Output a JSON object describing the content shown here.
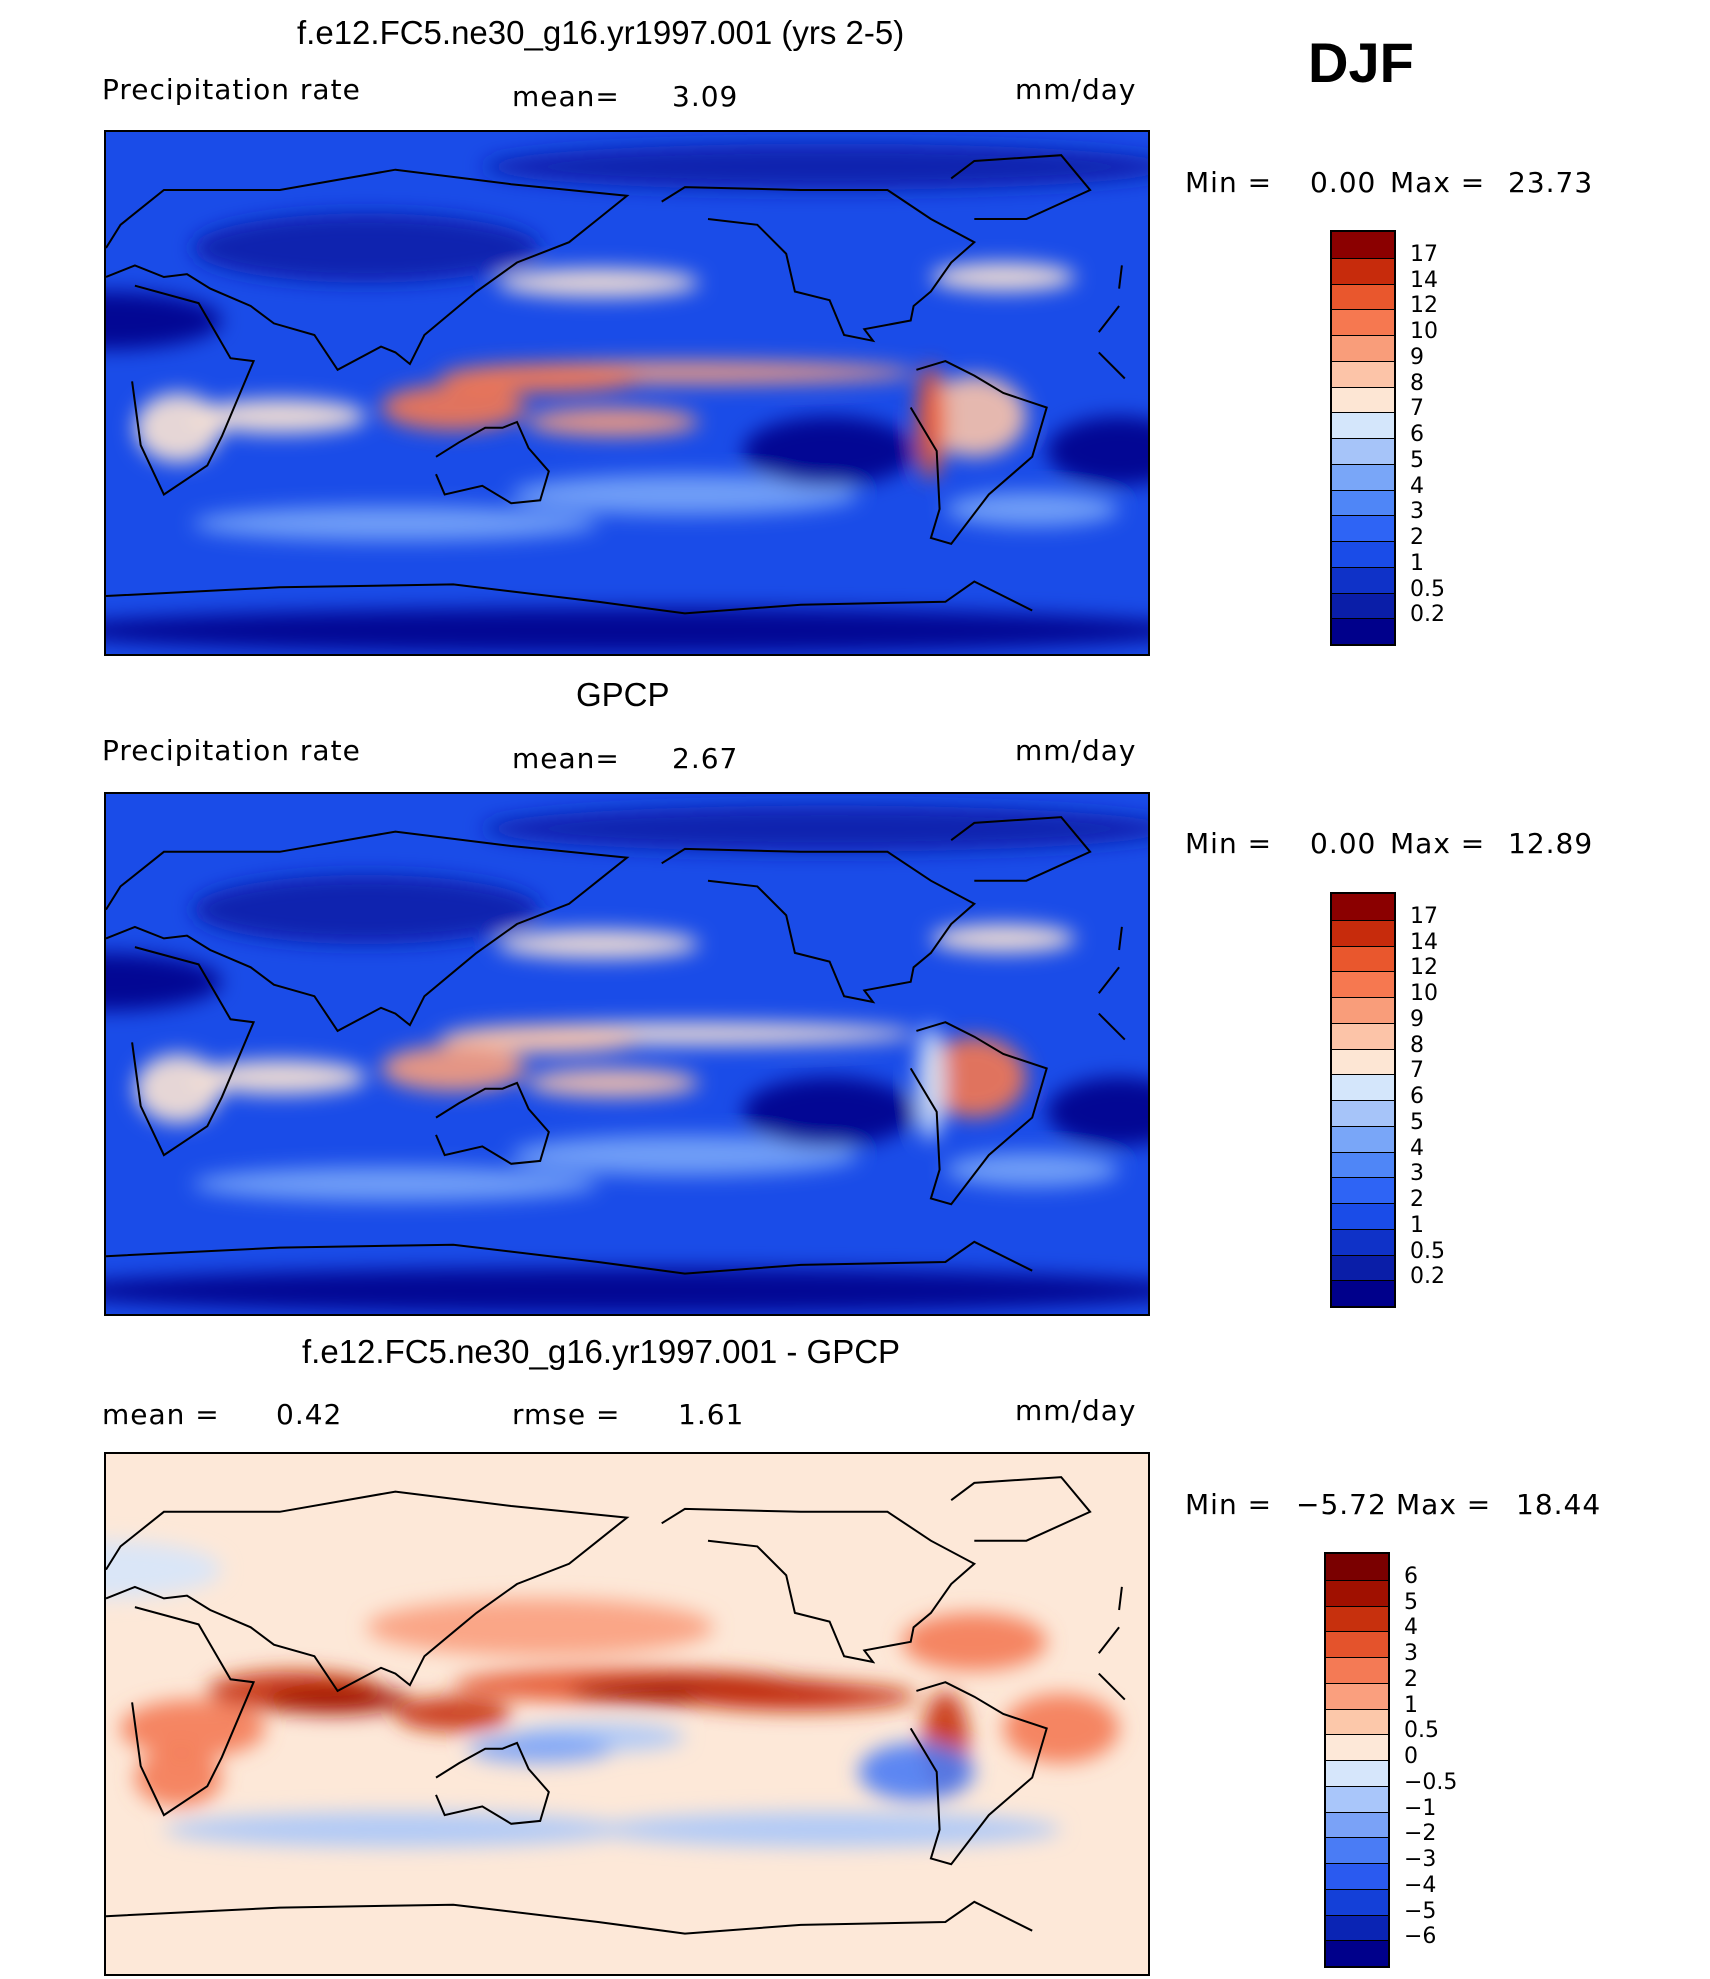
{
  "header": {
    "season": "DJF"
  },
  "chart_data": [
    {
      "type": "heatmap",
      "title": "f.e12.FC5.ne30_g16.yr1997.001 (yrs 2-5)",
      "variable": "Precipitation rate",
      "mean_label": "mean=",
      "mean_value": "3.09",
      "units": "mm/day",
      "min_label": "Min =",
      "min_value": "0.00",
      "max_label": "Max =",
      "max_value": "23.73",
      "levels": [
        "0.2",
        "0.5",
        "1",
        "2",
        "3",
        "4",
        "5",
        "6",
        "7",
        "8",
        "9",
        "10",
        "12",
        "14",
        "17"
      ],
      "colors": [
        "#00008b",
        "#0a1ea8",
        "#0f32c8",
        "#1a4ce8",
        "#2e64f5",
        "#4f86f7",
        "#79a6f8",
        "#a6c4f9",
        "#d4e6fb",
        "#fde6d4",
        "#fcc4a8",
        "#f99d7a",
        "#f67850",
        "#e9572d",
        "#c72b0c",
        "#8b0000"
      ]
    },
    {
      "type": "heatmap",
      "title": "GPCP",
      "variable": "Precipitation rate",
      "mean_label": "mean=",
      "mean_value": "2.67",
      "units": "mm/day",
      "min_label": "Min =",
      "min_value": "0.00",
      "max_label": "Max =",
      "max_value": "12.89",
      "levels": [
        "0.2",
        "0.5",
        "1",
        "2",
        "3",
        "4",
        "5",
        "6",
        "7",
        "8",
        "9",
        "10",
        "12",
        "14",
        "17"
      ],
      "colors": [
        "#00008b",
        "#0a1ea8",
        "#0f32c8",
        "#1a4ce8",
        "#2e64f5",
        "#4f86f7",
        "#79a6f8",
        "#a6c4f9",
        "#d4e6fb",
        "#fde6d4",
        "#fcc4a8",
        "#f99d7a",
        "#f67850",
        "#e9572d",
        "#c72b0c",
        "#8b0000"
      ]
    },
    {
      "type": "heatmap",
      "title": "f.e12.FC5.ne30_g16.yr1997.001 - GPCP",
      "mean_label": "mean =",
      "mean_value": "0.42",
      "rmse_label": "rmse =",
      "rmse_value": "1.61",
      "units": "mm/day",
      "min_label": "Min =",
      "min_value": "−5.72",
      "max_label": "Max =",
      "max_value": "18.44",
      "levels": [
        "−6",
        "−5",
        "−4",
        "−3",
        "−2",
        "−1",
        "−0.5",
        "0",
        "0.5",
        "1",
        "2",
        "3",
        "4",
        "5",
        "6"
      ],
      "colors": [
        "#00008b",
        "#0a24b4",
        "#1440d8",
        "#2a5af0",
        "#4a7cf5",
        "#7aa2f7",
        "#a9c6fa",
        "#d6e6fb",
        "#fde8d8",
        "#fcc8aa",
        "#fa9f7e",
        "#f47a55",
        "#e4532c",
        "#c7300d",
        "#a01000",
        "#7a0000"
      ]
    }
  ]
}
